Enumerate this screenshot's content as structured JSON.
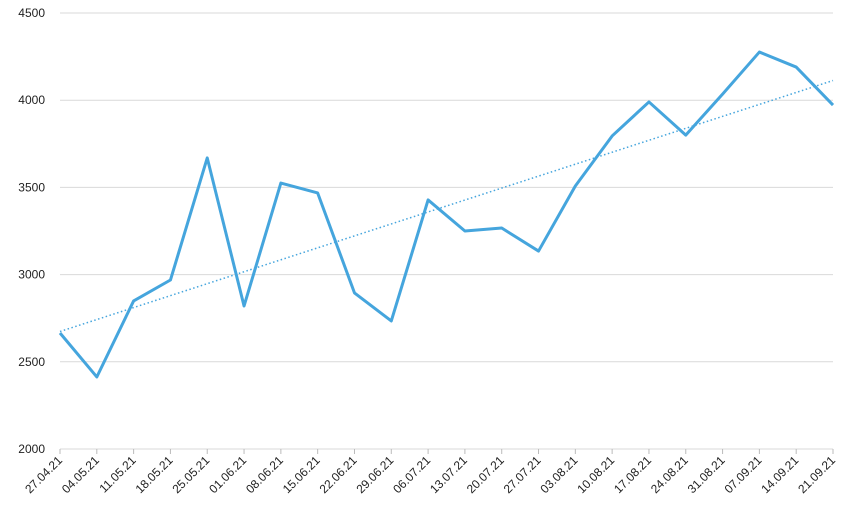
{
  "chart_data": {
    "type": "line",
    "x": [
      "27.04.21",
      "04.05.21",
      "11.05.21",
      "18.05.21",
      "25.05.21",
      "01.06.21",
      "08.06.21",
      "15.06.21",
      "22.06.21",
      "29.06.21",
      "06.07.21",
      "13.07.21",
      "20.07.21",
      "27.07.21",
      "03.08.21",
      "10.08.21",
      "17.08.21",
      "24.08.21",
      "31.08.21",
      "07.09.21",
      "14.09.21",
      "21.09.21"
    ],
    "series": [
      {
        "color": "#45a5dd",
        "values": [
          2665,
          2413,
          2849,
          2969,
          3669,
          2820,
          3525,
          3468,
          2895,
          2734,
          3428,
          3250,
          3267,
          3135,
          3508,
          3795,
          3990,
          3800,
          4035,
          4276,
          4190,
          3972
        ]
      }
    ],
    "trendline": true,
    "ylim": [
      2000,
      4500
    ],
    "yticks": [
      2000,
      2500,
      3000,
      3500,
      4000,
      4500
    ],
    "grid": true
  }
}
